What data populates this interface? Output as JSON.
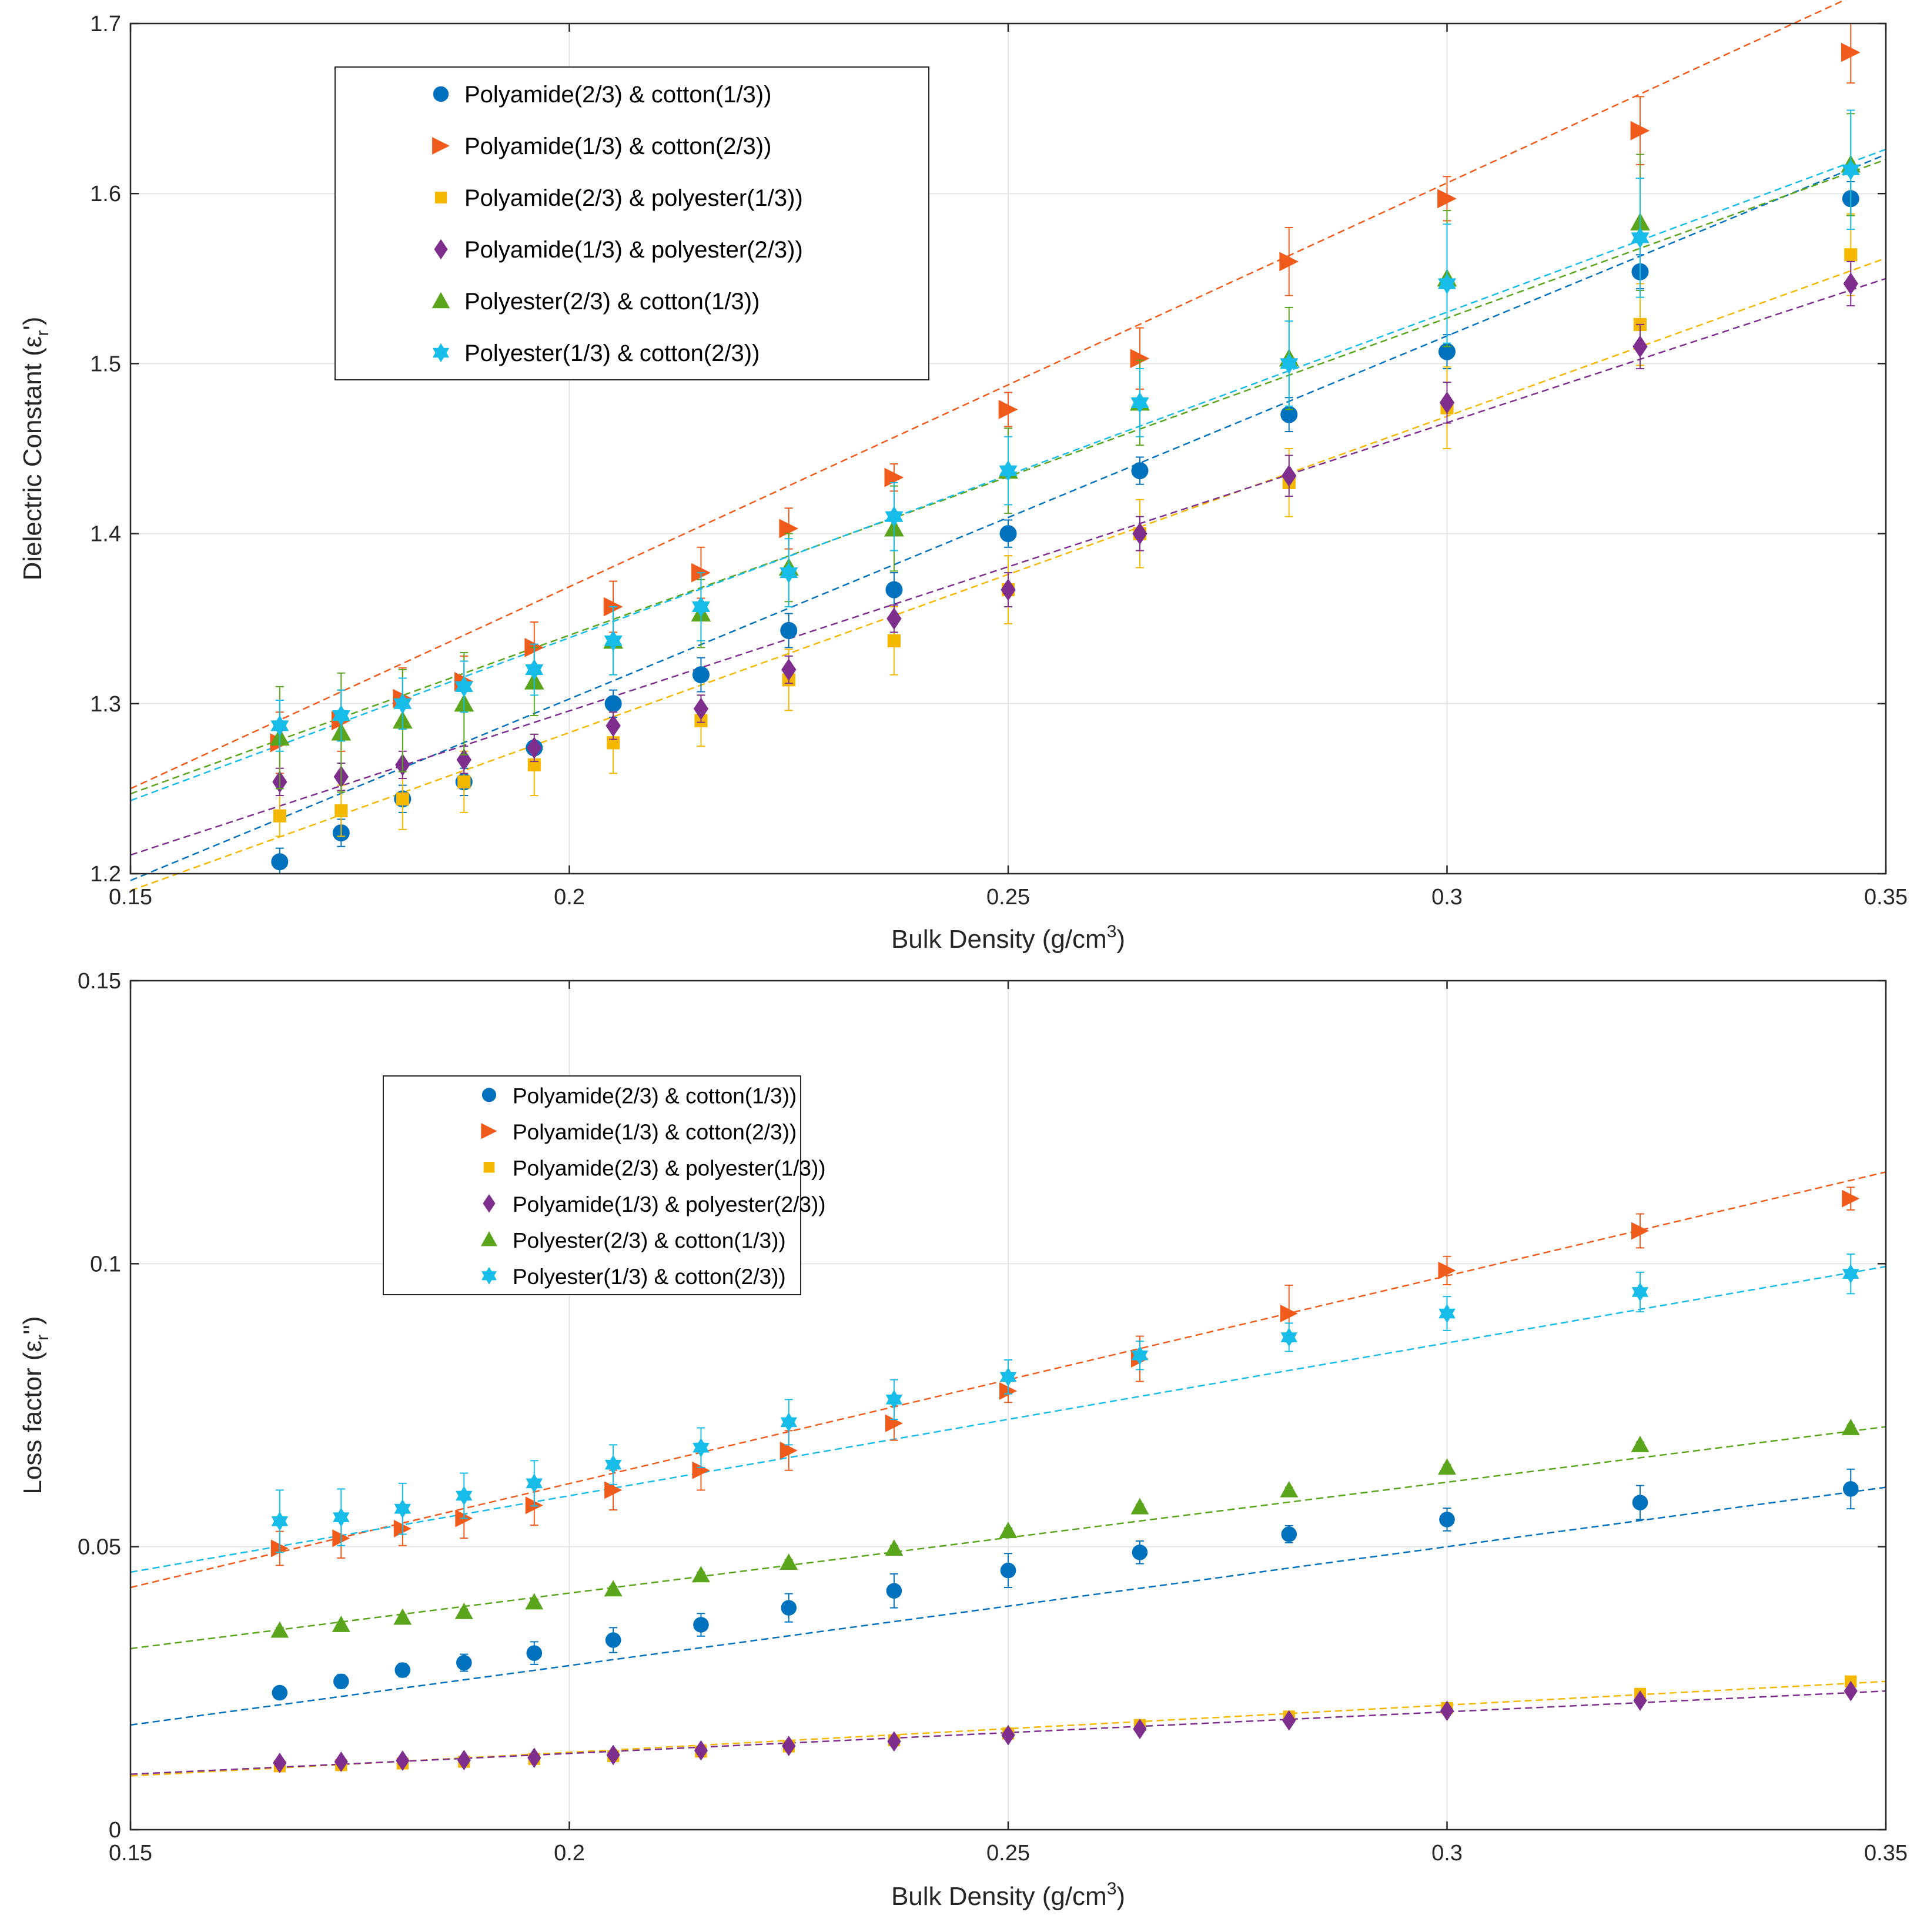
{
  "chart_data": [
    {
      "type": "scatter",
      "xlabel": "Bulk Density (g/cm",
      "xlabel_sup": "3",
      "xlabel_end": ")",
      "ylabel": "Dielectric Constant (ε",
      "ylabel_sub": "r",
      "ylabel_end": "')",
      "xlim": [
        0.15,
        0.35
      ],
      "ylim": [
        1.2,
        1.7
      ],
      "x_ticks": [
        "0.15",
        "0.2",
        "0.25",
        "0.3",
        "0.35"
      ],
      "y_ticks": [
        "1.2",
        "1.3",
        "1.4",
        "1.5",
        "1.6",
        "1.7"
      ],
      "grid": true,
      "legend_position": "top-left",
      "x": [
        0.167,
        0.174,
        0.181,
        0.188,
        0.196,
        0.205,
        0.215,
        0.225,
        0.237,
        0.25,
        0.265,
        0.282,
        0.3,
        0.322,
        0.346
      ],
      "series": [
        {
          "name": "Polyamide(2/3) & cotton(1/3))",
          "color": "#0072BD",
          "marker": "circle",
          "values": [
            1.207,
            1.224,
            1.244,
            1.254,
            1.274,
            1.3,
            1.317,
            1.343,
            1.367,
            1.4,
            1.437,
            1.47,
            1.507,
            1.554,
            1.597
          ],
          "errors": [
            0.008,
            0.008,
            0.008,
            0.008,
            0.008,
            0.008,
            0.01,
            0.01,
            0.01,
            0.008,
            0.008,
            0.01,
            0.01,
            0.01,
            0.01
          ],
          "fit": [
            1.196,
            1.623
          ]
        },
        {
          "name": "Polyamide(1/3) & cotton(2/3))",
          "color": "#F05A1A",
          "marker": "triangle-right",
          "values": [
            1.277,
            1.29,
            1.303,
            1.313,
            1.333,
            1.357,
            1.377,
            1.403,
            1.433,
            1.473,
            1.503,
            1.56,
            1.597,
            1.637,
            1.683
          ],
          "errors": [
            0.018,
            0.018,
            0.018,
            0.015,
            0.015,
            0.015,
            0.015,
            0.012,
            0.008,
            0.01,
            0.018,
            0.02,
            0.013,
            0.02,
            0.018
          ],
          "fit": [
            1.25,
            1.725
          ]
        },
        {
          "name": "Polyamide(2/3) & polyester(1/3))",
          "color": "#F5B800",
          "marker": "square",
          "values": [
            1.234,
            1.237,
            1.244,
            1.254,
            1.264,
            1.277,
            1.29,
            1.314,
            1.337,
            1.367,
            1.4,
            1.43,
            1.474,
            1.523,
            1.564
          ],
          "errors": [
            0.012,
            0.015,
            0.018,
            0.018,
            0.018,
            0.018,
            0.015,
            0.018,
            0.02,
            0.02,
            0.02,
            0.02,
            0.024,
            0.024,
            0.024
          ],
          "fit": [
            1.19,
            1.562
          ]
        },
        {
          "name": "Polyamide(1/3) & polyester(2/3))",
          "color": "#7E2F8E",
          "marker": "diamond",
          "values": [
            1.254,
            1.257,
            1.264,
            1.267,
            1.274,
            1.287,
            1.297,
            1.32,
            1.35,
            1.367,
            1.4,
            1.434,
            1.477,
            1.51,
            1.547
          ],
          "errors": [
            0.008,
            0.008,
            0.008,
            0.008,
            0.008,
            0.008,
            0.008,
            0.008,
            0.008,
            0.01,
            0.01,
            0.012,
            0.012,
            0.013,
            0.013
          ],
          "fit": [
            1.211,
            1.55
          ]
        },
        {
          "name": "Polyester(2/3) & cotton(1/3))",
          "color": "#5AA51C",
          "marker": "triangle-up",
          "values": [
            1.28,
            1.283,
            1.29,
            1.3,
            1.313,
            1.337,
            1.353,
            1.38,
            1.403,
            1.437,
            1.477,
            1.503,
            1.55,
            1.583,
            1.617
          ],
          "errors": [
            0.03,
            0.035,
            0.03,
            0.03,
            0.02,
            0.02,
            0.02,
            0.02,
            0.025,
            0.025,
            0.025,
            0.03,
            0.04,
            0.04,
            0.03
          ],
          "fit": [
            1.247,
            1.62
          ]
        },
        {
          "name": "Polyester(1/3) & cotton(2/3))",
          "color": "#17BDE8",
          "marker": "hexagram",
          "values": [
            1.287,
            1.293,
            1.3,
            1.31,
            1.32,
            1.337,
            1.357,
            1.377,
            1.41,
            1.437,
            1.477,
            1.5,
            1.547,
            1.574,
            1.614
          ],
          "errors": [
            0.015,
            0.015,
            0.015,
            0.015,
            0.015,
            0.02,
            0.02,
            0.02,
            0.02,
            0.02,
            0.02,
            0.025,
            0.035,
            0.035,
            0.035
          ],
          "fit": [
            1.243,
            1.626
          ]
        }
      ]
    },
    {
      "type": "scatter",
      "xlabel": "Bulk Density (g/cm",
      "xlabel_sup": "3",
      "xlabel_end": ")",
      "ylabel": "Loss factor (ε",
      "ylabel_sub": "r",
      "ylabel_end": "'')",
      "xlim": [
        0.15,
        0.35
      ],
      "ylim": [
        0,
        0.15
      ],
      "x_ticks": [
        "0.15",
        "0.2",
        "0.25",
        "0.3",
        "0.35"
      ],
      "y_ticks": [
        "0",
        "0.05",
        "0.1",
        "0.15"
      ],
      "grid": true,
      "legend_position": "top-left",
      "x": [
        0.167,
        0.174,
        0.181,
        0.188,
        0.196,
        0.205,
        0.215,
        0.225,
        0.237,
        0.25,
        0.265,
        0.282,
        0.3,
        0.322,
        0.346
      ],
      "series": [
        {
          "name": "Polyamide(2/3) & cotton(1/3))",
          "color": "#0072BD",
          "marker": "circle",
          "values": [
            0.0242,
            0.0262,
            0.0282,
            0.0295,
            0.0312,
            0.0335,
            0.0362,
            0.0392,
            0.0422,
            0.0458,
            0.049,
            0.0522,
            0.0548,
            0.0578,
            0.0602
          ],
          "errors": [
            0.001,
            0.0012,
            0.0012,
            0.0015,
            0.002,
            0.0022,
            0.002,
            0.0025,
            0.003,
            0.003,
            0.002,
            0.0015,
            0.002,
            0.003,
            0.0035
          ],
          "fit": [
            0.0185,
            0.0605
          ]
        },
        {
          "name": "Polyamide(1/3) & cotton(2/3))",
          "color": "#F05A1A",
          "marker": "triangle-right",
          "values": [
            0.0497,
            0.0515,
            0.0532,
            0.055,
            0.0573,
            0.06,
            0.0635,
            0.067,
            0.0718,
            0.0775,
            0.0832,
            0.0912,
            0.0988,
            0.1058,
            0.1115
          ],
          "errors": [
            0.003,
            0.0035,
            0.003,
            0.0035,
            0.0035,
            0.0035,
            0.0035,
            0.0035,
            0.003,
            0.002,
            0.004,
            0.005,
            0.0025,
            0.003,
            0.002
          ],
          "fit": [
            0.0428,
            0.1162
          ]
        },
        {
          "name": "Polyamide(2/3) & polyester(1/3))",
          "color": "#F5B800",
          "marker": "square",
          "values": [
            0.0112,
            0.0114,
            0.0117,
            0.012,
            0.0125,
            0.013,
            0.0138,
            0.0147,
            0.0158,
            0.017,
            0.0185,
            0.02,
            0.0215,
            0.024,
            0.0262
          ],
          "errors": [
            0.0005,
            0.0005,
            0.0005,
            0.0005,
            0.0005,
            0.0005,
            0.0005,
            0.0005,
            0.0005,
            0.0005,
            0.0005,
            0.0005,
            0.0005,
            0.0005,
            0.0005
          ],
          "fit": [
            0.0095,
            0.0262
          ]
        },
        {
          "name": "Polyamide(1/3) & polyester(2/3))",
          "color": "#7E2F8E",
          "marker": "diamond",
          "values": [
            0.0118,
            0.012,
            0.0122,
            0.0123,
            0.0127,
            0.0132,
            0.014,
            0.0148,
            0.0156,
            0.0167,
            0.0178,
            0.0193,
            0.021,
            0.0228,
            0.0245
          ],
          "errors": [
            0.0005,
            0.0005,
            0.0005,
            0.0005,
            0.0005,
            0.0005,
            0.0005,
            0.0005,
            0.0005,
            0.0005,
            0.0005,
            0.0005,
            0.0005,
            0.0005,
            0.0005
          ],
          "fit": [
            0.0098,
            0.0245
          ]
        },
        {
          "name": "Polyester(2/3) & cotton(1/3))",
          "color": "#5AA51C",
          "marker": "triangle-up",
          "values": [
            0.0352,
            0.0362,
            0.0375,
            0.0385,
            0.0402,
            0.0425,
            0.045,
            0.0472,
            0.0497,
            0.0528,
            0.057,
            0.06,
            0.064,
            0.068,
            0.071
          ],
          "errors": [
            0.0005,
            0.0005,
            0.0005,
            0.0005,
            0.0005,
            0.0005,
            0.0005,
            0.0005,
            0.0005,
            0.0005,
            0.0005,
            0.0005,
            0.0005,
            0.0005,
            0.0005
          ],
          "fit": [
            0.032,
            0.0712
          ]
        },
        {
          "name": "Polyester(1/3) & cotton(2/3))",
          "color": "#17BDE8",
          "marker": "hexagram",
          "values": [
            0.0545,
            0.0552,
            0.0567,
            0.059,
            0.0612,
            0.0645,
            0.0675,
            0.072,
            0.076,
            0.08,
            0.0838,
            0.087,
            0.0912,
            0.095,
            0.0982
          ],
          "errors": [
            0.0055,
            0.005,
            0.0045,
            0.004,
            0.004,
            0.0035,
            0.0035,
            0.004,
            0.0035,
            0.003,
            0.0025,
            0.0025,
            0.003,
            0.0035,
            0.0035
          ],
          "fit": [
            0.0455,
            0.0995
          ]
        }
      ]
    }
  ]
}
